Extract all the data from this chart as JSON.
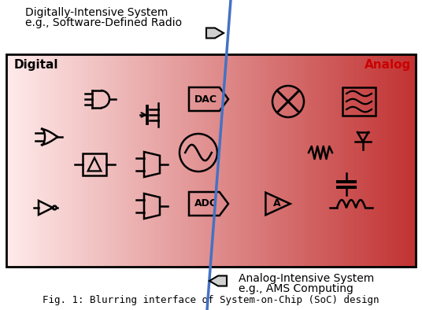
{
  "title_top1": "Digitally-Intensive System",
  "title_top2": "e.g., Software-Defined Radio",
  "title_bot1": "Analog-Intensive System",
  "title_bot2": "e.g., AMS Computing",
  "label_digital": "Digital",
  "label_analog": "Analog",
  "caption": "Fig. 1: Blurring interface of System-on-Chip (SoC) design",
  "line_color": "#4472c4",
  "background_color": "#ffffff",
  "lw": 1.8,
  "fig_width": 5.36,
  "fig_height": 3.94,
  "dpi": 100
}
